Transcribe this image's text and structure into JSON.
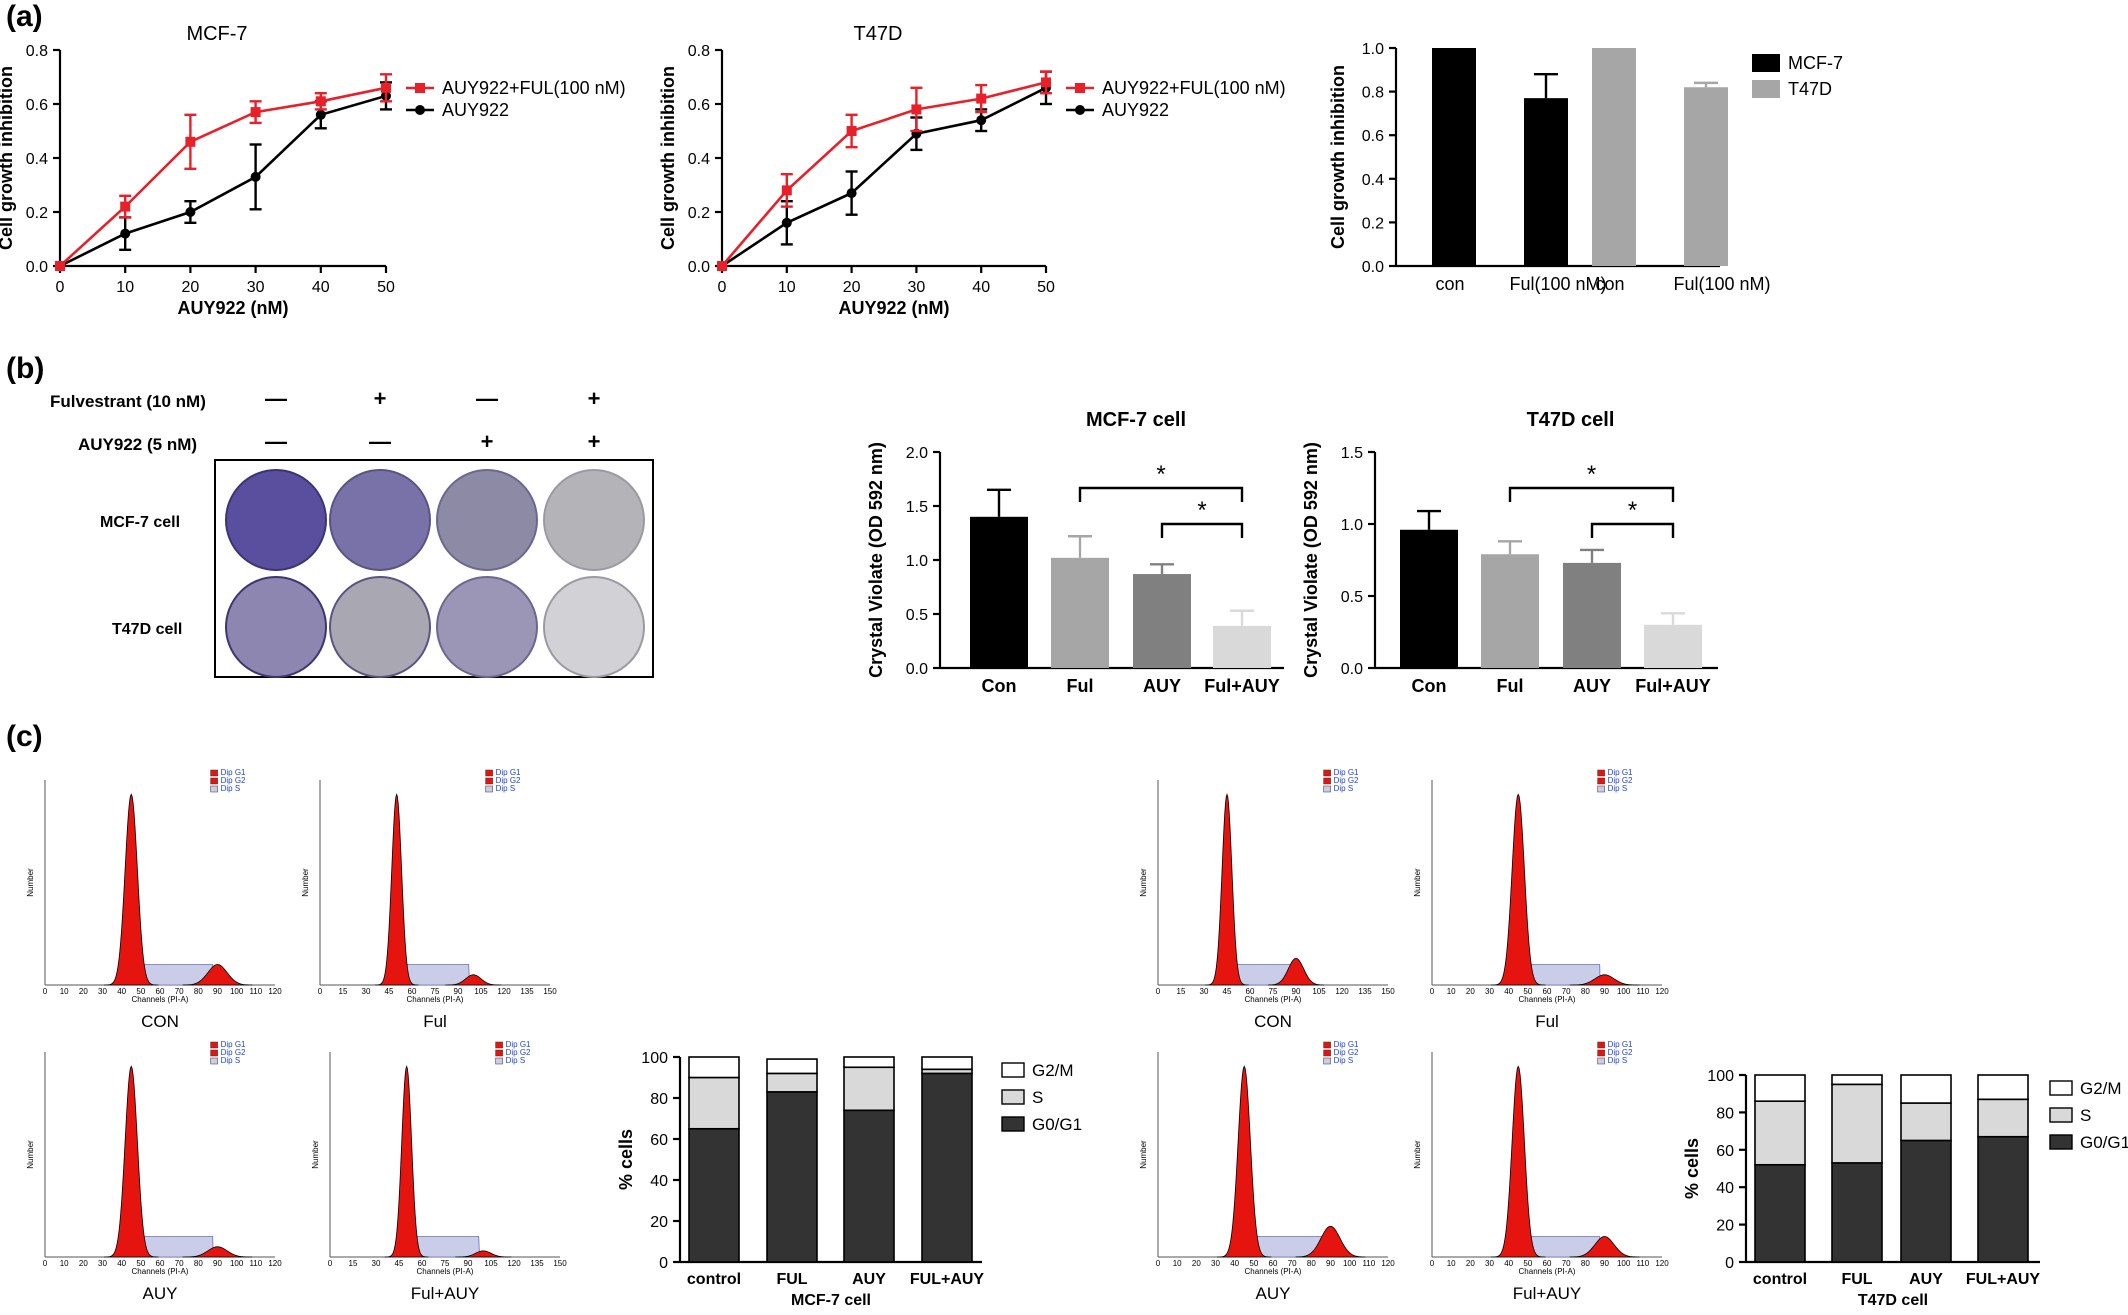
{
  "panel_letters": [
    "(a)",
    "(b)",
    "(c)"
  ],
  "colors": {
    "red": "#e8202a",
    "black": "#000000",
    "gray": "#a6a6a6"
  },
  "crystal_violet": {
    "row_labels": [
      "Fulvestrant (10 nM)",
      "AUY922 (5 nM)"
    ],
    "fulvestrant_signs": [
      "—",
      "+",
      "—",
      "+"
    ],
    "auy922_signs": [
      "—",
      "—",
      "+",
      "+"
    ],
    "plate_rows": [
      "MCF-7 cell",
      "T47D cell"
    ]
  },
  "flow_panels": {
    "mcf7": [
      {
        "caption": "CON",
        "xmax": 120
      },
      {
        "caption": "Ful",
        "xmax": 150
      },
      {
        "caption": "AUY",
        "xmax": 120
      },
      {
        "caption": "Ful+AUY",
        "xmax": 150
      }
    ],
    "t47d": [
      {
        "caption": "CON",
        "xmax": 150
      },
      {
        "caption": "Ful",
        "xmax": 120
      },
      {
        "caption": "AUY",
        "xmax": 120
      },
      {
        "caption": "Ful+AUY",
        "xmax": 120
      }
    ],
    "legend": [
      "Dip G1",
      "Dip G2",
      "Dip S"
    ],
    "axis_x_label": "Channels (PI-A)",
    "axis_y_label": "Number"
  },
  "chart_data": [
    {
      "id": "a1",
      "type": "line",
      "title": "MCF-7",
      "xlabel": "AUY922 (nM)",
      "ylabel": "Cell growth inhibition",
      "xlim": [
        0,
        50
      ],
      "ylim": [
        0,
        0.8
      ],
      "xticks": [
        "0",
        "10",
        "20",
        "30",
        "40",
        "50"
      ],
      "yticks": [
        "0.0",
        "0.2",
        "0.4",
        "0.6",
        "0.8"
      ],
      "legend_position": "right",
      "series": [
        {
          "name": "AUY922+FUL(100 nM)",
          "color": "#e8202a",
          "marker": "square",
          "x": [
            0,
            10,
            20,
            30,
            40,
            50
          ],
          "y": [
            0,
            0.22,
            0.46,
            0.57,
            0.61,
            0.66
          ],
          "err": [
            0,
            0.04,
            0.1,
            0.04,
            0.03,
            0.05
          ]
        },
        {
          "name": "AUY922",
          "color": "#000000",
          "marker": "circle",
          "x": [
            0,
            10,
            20,
            30,
            40,
            50
          ],
          "y": [
            0,
            0.12,
            0.2,
            0.33,
            0.56,
            0.63
          ],
          "err": [
            0,
            0.06,
            0.04,
            0.12,
            0.05,
            0.05
          ]
        }
      ]
    },
    {
      "id": "a2",
      "type": "line",
      "title": "T47D",
      "xlabel": "AUY922 (nM)",
      "ylabel": "Cell growth inhibition",
      "xlim": [
        0,
        50
      ],
      "ylim": [
        0,
        0.8
      ],
      "xticks": [
        "0",
        "10",
        "20",
        "30",
        "40",
        "50"
      ],
      "yticks": [
        "0.0",
        "0.2",
        "0.4",
        "0.6",
        "0.8"
      ],
      "legend_position": "right",
      "series": [
        {
          "name": "AUY922+FUL(100 nM)",
          "color": "#e8202a",
          "marker": "square",
          "x": [
            0,
            10,
            20,
            30,
            40,
            50
          ],
          "y": [
            0,
            0.28,
            0.5,
            0.58,
            0.62,
            0.68
          ],
          "err": [
            0,
            0.06,
            0.06,
            0.08,
            0.05,
            0.04
          ]
        },
        {
          "name": "AUY922",
          "color": "#000000",
          "marker": "circle",
          "x": [
            0,
            10,
            20,
            30,
            40,
            50
          ],
          "y": [
            0,
            0.16,
            0.27,
            0.49,
            0.54,
            0.66
          ],
          "err": [
            0,
            0.08,
            0.08,
            0.06,
            0.04,
            0.06
          ]
        }
      ]
    },
    {
      "id": "a3",
      "type": "bar",
      "title": "",
      "xlabel": "",
      "ylabel": "Cell growth inhibition",
      "ylim": [
        0,
        1.0
      ],
      "yticks": [
        "0.0",
        "0.2",
        "0.4",
        "0.6",
        "0.8",
        "1.0"
      ],
      "categories": [
        "con",
        "Ful(100 nM)",
        "con",
        "Ful(100 nM)"
      ],
      "values": [
        1.0,
        0.77,
        1.0,
        0.82
      ],
      "err": [
        0,
        0.11,
        0,
        0.02
      ],
      "bar_colors": [
        "#000000",
        "#000000",
        "#a6a6a6",
        "#a6a6a6"
      ],
      "legend_position": "right",
      "legend": [
        {
          "name": "MCF-7",
          "color": "#000000"
        },
        {
          "name": "T47D",
          "color": "#a6a6a6"
        }
      ]
    },
    {
      "id": "b1",
      "type": "bar",
      "title": "MCF-7 cell",
      "xlabel": "",
      "ylabel": "Crystal Violate (OD 592 nm)",
      "ylim": [
        0,
        2.0
      ],
      "yticks": [
        "0.0",
        "0.5",
        "1.0",
        "1.5",
        "2.0"
      ],
      "categories": [
        "Con",
        "Ful",
        "AUY",
        "Ful+AUY"
      ],
      "values": [
        1.4,
        1.02,
        0.87,
        0.39
      ],
      "err": [
        0.25,
        0.2,
        0.09,
        0.14
      ],
      "bar_colors": [
        "#000000",
        "#a6a6a6",
        "#808080",
        "#d9d9d9"
      ],
      "significance": [
        {
          "from": 1,
          "to": 3,
          "label": "*"
        },
        {
          "from": 2,
          "to": 3,
          "label": "*"
        }
      ]
    },
    {
      "id": "b2",
      "type": "bar",
      "title": "T47D cell",
      "xlabel": "",
      "ylabel": "Crystal Violate (OD 592 nm)",
      "ylim": [
        0,
        1.5
      ],
      "yticks": [
        "0.0",
        "0.5",
        "1.0",
        "1.5"
      ],
      "categories": [
        "Con",
        "Ful",
        "AUY",
        "Ful+AUY"
      ],
      "values": [
        0.96,
        0.79,
        0.73,
        0.3
      ],
      "err": [
        0.13,
        0.09,
        0.09,
        0.08
      ],
      "bar_colors": [
        "#000000",
        "#a6a6a6",
        "#808080",
        "#d9d9d9"
      ],
      "significance": [
        {
          "from": 1,
          "to": 3,
          "label": "*"
        },
        {
          "from": 2,
          "to": 3,
          "label": "*"
        }
      ]
    },
    {
      "id": "c1",
      "type": "bar",
      "stacked": true,
      "title": "",
      "xlabel": "MCF-7 cell",
      "ylabel": "% cells",
      "ylim": [
        0,
        100
      ],
      "yticks": [
        "0",
        "20",
        "40",
        "60",
        "80",
        "100"
      ],
      "categories": [
        "control",
        "FUL",
        "AUY",
        "FUL+AUY"
      ],
      "legend_position": "right",
      "series": [
        {
          "name": "G0/G1",
          "color": "#333333",
          "values": [
            65,
            83,
            74,
            92
          ]
        },
        {
          "name": "S",
          "color": "#d9d9d9",
          "values": [
            25,
            9,
            21,
            2
          ]
        },
        {
          "name": "G2/M",
          "color": "#ffffff",
          "values": [
            10,
            7,
            5,
            6
          ]
        }
      ]
    },
    {
      "id": "c2",
      "type": "bar",
      "stacked": true,
      "title": "",
      "xlabel": "T47D cell",
      "ylabel": "% cells",
      "ylim": [
        0,
        100
      ],
      "yticks": [
        "0",
        "20",
        "40",
        "60",
        "80",
        "100"
      ],
      "categories": [
        "control",
        "FUL",
        "AUY",
        "FUL+AUY"
      ],
      "legend_position": "right",
      "series": [
        {
          "name": "G0/G1",
          "color": "#333333",
          "values": [
            52,
            53,
            65,
            67
          ]
        },
        {
          "name": "S",
          "color": "#d9d9d9",
          "values": [
            34,
            42,
            20,
            20
          ]
        },
        {
          "name": "G2/M",
          "color": "#ffffff",
          "values": [
            14,
            5,
            15,
            13
          ]
        }
      ]
    }
  ]
}
